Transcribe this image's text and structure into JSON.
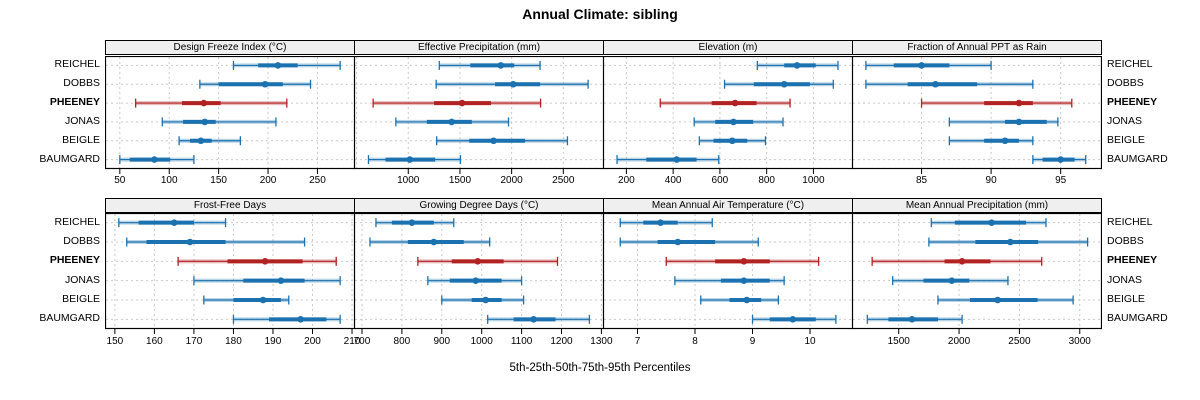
{
  "title": "Annual Climate: sibling",
  "caption": "5th-25th-50th-75th-95th Percentiles",
  "stations": [
    "REICHEL",
    "DOBBS",
    "PHEENEY",
    "JONAS",
    "BEIGLE",
    "BAUMGARD"
  ],
  "highlight_station": "PHEENEY",
  "colors": {
    "series_blue": "#1c72b0",
    "highlight_red": "#b22222",
    "grid": "#c9c9c9",
    "strip_bg": "#efefef",
    "border": "#000000",
    "band_opacity": 0.3
  },
  "chart_data": {
    "type": "scatter",
    "subtype": "trellis percentile-interval dot plot, 2 rows x 4 columns",
    "percentiles": [
      5,
      25,
      50,
      75,
      95
    ],
    "glyph_note": "dot = 50th percentile; thick bar = 25th-75th; thin line with end caps = 5th-95th; light band spans 5th-95th",
    "layout": {
      "rows": 2,
      "cols": 4,
      "gridlines": "dashed vertical at axis ticks and dashed horizontal per station row",
      "station_labels": "left and right of plot"
    },
    "panels": [
      {
        "title": "Design Freeze Index (°C)",
        "range": [
          35,
          287
        ],
        "ticks": [
          50,
          100,
          150,
          200,
          250
        ],
        "series": [
          {
            "station": "REICHEL",
            "values": [
              165,
              190,
              210,
              230,
              273
            ]
          },
          {
            "station": "DOBBS",
            "values": [
              131,
              150,
              197,
              215,
              243
            ]
          },
          {
            "station": "PHEENEY",
            "values": [
              66,
              113,
              135,
              152,
              219
            ]
          },
          {
            "station": "JONAS",
            "values": [
              93,
              114,
              136,
              147,
              208
            ]
          },
          {
            "station": "BEIGLE",
            "values": [
              110,
              121,
              132,
              143,
              172
            ]
          },
          {
            "station": "BAUMGARD",
            "values": [
              50,
              60,
              85,
              101,
              125
            ]
          }
        ]
      },
      {
        "title": "Effective Precipitation (mm)",
        "range": [
          475,
          2884
        ],
        "ticks": [
          1000,
          1500,
          2000,
          2500
        ],
        "grid": [
          500,
          1000,
          1500,
          2000,
          2500
        ],
        "series": [
          {
            "station": "REICHEL",
            "values": [
              1300,
              1600,
              1895,
              2025,
              2275
            ]
          },
          {
            "station": "DOBBS",
            "values": [
              1270,
              1840,
              2015,
              2275,
              2740
            ]
          },
          {
            "station": "PHEENEY",
            "values": [
              660,
              1250,
              1520,
              1800,
              2280
            ]
          },
          {
            "station": "JONAS",
            "values": [
              880,
              1180,
              1420,
              1615,
              1970
            ]
          },
          {
            "station": "BEIGLE",
            "values": [
              1275,
              1590,
              1825,
              2130,
              2540
            ]
          },
          {
            "station": "BAUMGARD",
            "values": [
              615,
              780,
              1015,
              1260,
              1505
            ]
          }
        ]
      },
      {
        "title": "Elevation (m)",
        "range": [
          100,
          1165
        ],
        "ticks": [
          200,
          400,
          600,
          800,
          1000
        ],
        "series": [
          {
            "station": "REICHEL",
            "values": [
              760,
              875,
              930,
              1010,
              1105
            ]
          },
          {
            "station": "DOBBS",
            "values": [
              620,
              745,
              875,
              985,
              1085
            ]
          },
          {
            "station": "PHEENEY",
            "values": [
              345,
              565,
              665,
              757,
              900
            ]
          },
          {
            "station": "JONAS",
            "values": [
              490,
              580,
              658,
              742,
              870
            ]
          },
          {
            "station": "BEIGLE",
            "values": [
              512,
              573,
              653,
              717,
              795
            ]
          },
          {
            "station": "BAUMGARD",
            "values": [
              160,
              285,
              415,
              500,
              595
            ]
          }
        ]
      },
      {
        "title": "Fraction of Annual PPT as Rain",
        "range": [
          80,
          97.9
        ],
        "ticks": [
          85,
          90,
          95
        ],
        "series": [
          {
            "station": "REICHEL",
            "values": [
              81,
              83,
              85,
              87,
              90
            ]
          },
          {
            "station": "DOBBS",
            "values": [
              81,
              84,
              86,
              89,
              93
            ]
          },
          {
            "station": "PHEENEY",
            "values": [
              85,
              89.5,
              92,
              93,
              95.8
            ]
          },
          {
            "station": "JONAS",
            "values": [
              87,
              91,
              92,
              94,
              94.8
            ]
          },
          {
            "station": "BEIGLE",
            "values": [
              87,
              89.5,
              91,
              92,
              93
            ]
          },
          {
            "station": "BAUMGARD",
            "values": [
              93,
              93.7,
              95,
              96,
              96.8
            ]
          }
        ]
      },
      {
        "title": "Frost-Free Days",
        "range": [
          147.5,
          210.5
        ],
        "ticks": [
          150,
          160,
          170,
          180,
          190,
          200,
          210
        ],
        "series": [
          {
            "station": "REICHEL",
            "values": [
              151,
              156,
              165,
              170,
              178
            ]
          },
          {
            "station": "DOBBS",
            "values": [
              153,
              158,
              169,
              178,
              198
            ]
          },
          {
            "station": "PHEENEY",
            "values": [
              166,
              178.5,
              188,
              197.5,
              206
            ]
          },
          {
            "station": "JONAS",
            "values": [
              170,
              182.5,
              192,
              198,
              207
            ]
          },
          {
            "station": "BEIGLE",
            "values": [
              172.5,
              180,
              187.5,
              192,
              194
            ]
          },
          {
            "station": "BAUMGARD",
            "values": [
              180,
              189,
              197,
              203.5,
              207
            ]
          }
        ]
      },
      {
        "title": "Growing Degree Days (°C)",
        "range": [
          680,
          1304
        ],
        "ticks": [
          700,
          800,
          900,
          1000,
          1100,
          1200,
          1300
        ],
        "series": [
          {
            "station": "REICHEL",
            "values": [
              735,
              775,
              825,
              880,
              930
            ]
          },
          {
            "station": "DOBBS",
            "values": [
              720,
              815,
              880,
              955,
              1020
            ]
          },
          {
            "station": "PHEENEY",
            "values": [
              840,
              925,
              990,
              1055,
              1190
            ]
          },
          {
            "station": "JONAS",
            "values": [
              865,
              920,
              985,
              1050,
              1100
            ]
          },
          {
            "station": "BEIGLE",
            "values": [
              900,
              975,
              1010,
              1050,
              1105
            ]
          },
          {
            "station": "BAUMGARD",
            "values": [
              1015,
              1080,
              1130,
              1185,
              1270
            ]
          }
        ]
      },
      {
        "title": "Mean Annual Air Temperature (°C)",
        "range": [
          6.4,
          10.73
        ],
        "ticks": [
          7,
          8,
          9,
          10
        ],
        "series": [
          {
            "station": "REICHEL",
            "values": [
              6.7,
              7.1,
              7.4,
              7.7,
              8.3
            ]
          },
          {
            "station": "DOBBS",
            "values": [
              6.7,
              7.35,
              7.7,
              8.35,
              9.1
            ]
          },
          {
            "station": "PHEENEY",
            "values": [
              7.5,
              8.35,
              8.85,
              9.3,
              10.15
            ]
          },
          {
            "station": "JONAS",
            "values": [
              7.65,
              8.45,
              8.85,
              9.3,
              9.55
            ]
          },
          {
            "station": "BEIGLE",
            "values": [
              8.1,
              8.6,
              8.9,
              9.15,
              9.45
            ]
          },
          {
            "station": "BAUMGARD",
            "values": [
              9.0,
              9.3,
              9.7,
              10.1,
              10.45
            ]
          }
        ]
      },
      {
        "title": "Mean Annual Precipitation (mm)",
        "range": [
          1113,
          3176
        ],
        "ticks": [
          1500,
          2000,
          2500,
          3000
        ],
        "series": [
          {
            "station": "REICHEL",
            "values": [
              1770,
              1965,
              2270,
              2555,
              2720
            ]
          },
          {
            "station": "DOBBS",
            "values": [
              1750,
              2135,
              2425,
              2655,
              3065
            ]
          },
          {
            "station": "PHEENEY",
            "values": [
              1280,
              1880,
              2025,
              2260,
              2685
            ]
          },
          {
            "station": "JONAS",
            "values": [
              1450,
              1705,
              1940,
              2085,
              2405
            ]
          },
          {
            "station": "BEIGLE",
            "values": [
              1825,
              2090,
              2320,
              2650,
              2945
            ]
          },
          {
            "station": "BAUMGARD",
            "values": [
              1240,
              1415,
              1610,
              1825,
              2025
            ]
          }
        ]
      }
    ]
  }
}
